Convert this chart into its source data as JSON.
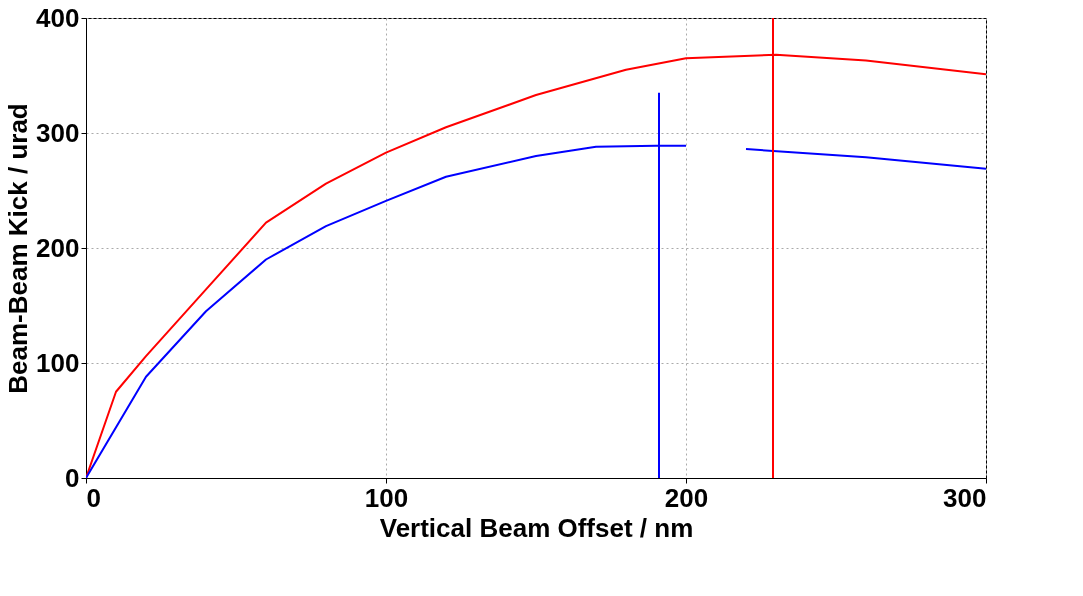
{
  "chart_data": {
    "type": "line",
    "xlabel": "Vertical Beam Offset / nm",
    "ylabel": "Beam-Beam Kick / urad",
    "xlim": [
      0,
      300
    ],
    "ylim": [
      0,
      400
    ],
    "xticks": [
      0,
      100,
      200,
      300
    ],
    "yticks": [
      0,
      100,
      200,
      300,
      400
    ],
    "grid": true,
    "line_style": "solid",
    "series": [
      {
        "color": "#ff0000",
        "x": [
          0,
          10,
          20,
          40,
          60,
          80,
          100,
          120,
          150,
          180,
          200,
          230,
          260,
          300
        ],
        "values": [
          0,
          75,
          106,
          164,
          222,
          256,
          283,
          305,
          333,
          355,
          365,
          368,
          363,
          351
        ]
      },
      {
        "color": "#0000ff",
        "x": [
          0,
          20,
          40,
          60,
          80,
          100,
          120,
          150,
          170,
          190,
          200,
          210,
          220,
          260,
          300
        ],
        "values": [
          0,
          88,
          145,
          190,
          219,
          241,
          262,
          280,
          288,
          289,
          289,
          null,
          286,
          279,
          269
        ]
      },
      {
        "color": "#0000ff",
        "x": [
          191,
          191
        ],
        "values": [
          0,
          335
        ]
      },
      {
        "color": "#ff0000",
        "x": [
          229,
          229
        ],
        "values": [
          0,
          400
        ]
      }
    ]
  }
}
